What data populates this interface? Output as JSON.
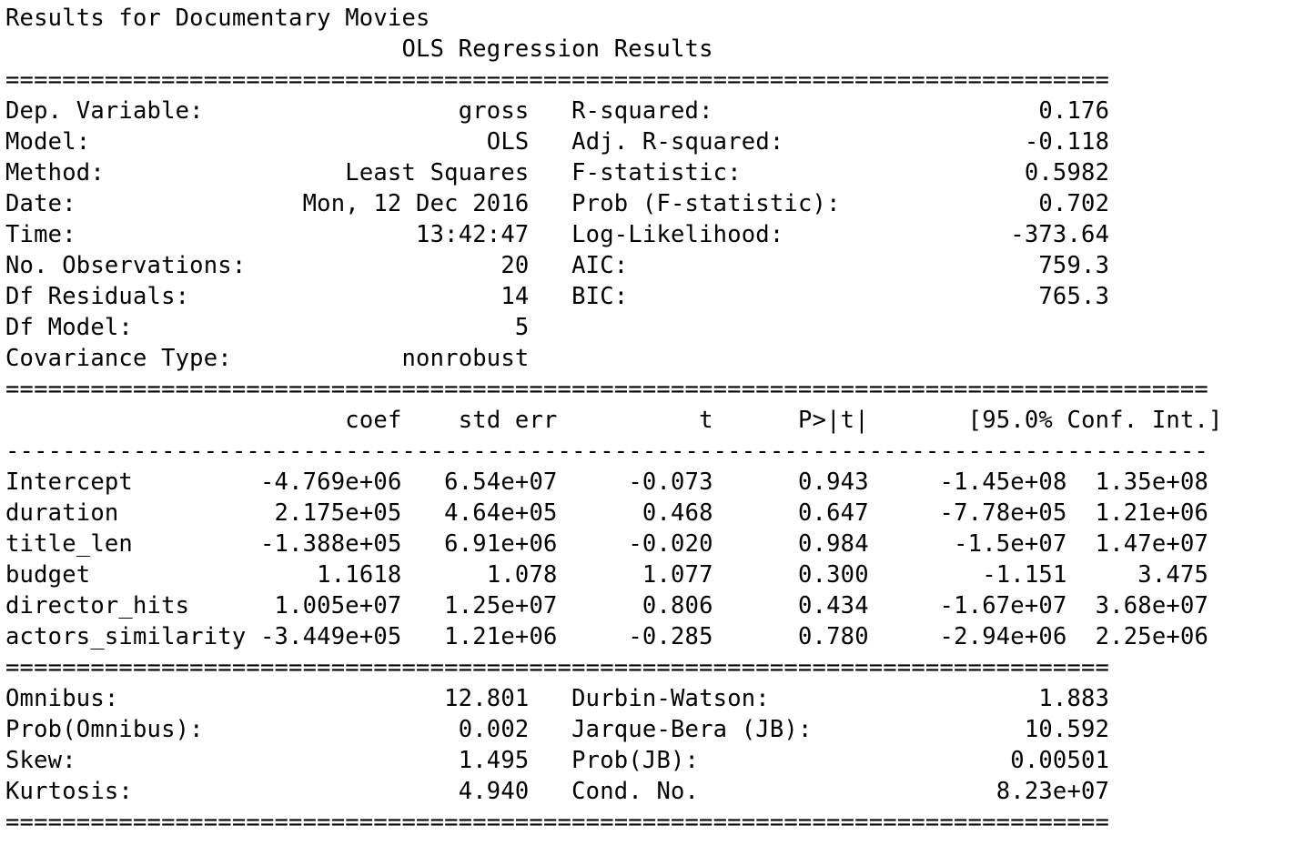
{
  "heading": "Results for Documentary Movies",
  "summary_title": "OLS Regression Results",
  "top_left": [
    {
      "label": "Dep. Variable:",
      "value": "gross"
    },
    {
      "label": "Model:",
      "value": "OLS"
    },
    {
      "label": "Method:",
      "value": "Least Squares"
    },
    {
      "label": "Date:",
      "value": "Mon, 12 Dec 2016"
    },
    {
      "label": "Time:",
      "value": "13:42:47"
    },
    {
      "label": "No. Observations:",
      "value": "20"
    },
    {
      "label": "Df Residuals:",
      "value": "14"
    },
    {
      "label": "Df Model:",
      "value": "5"
    },
    {
      "label": "Covariance Type:",
      "value": "nonrobust"
    }
  ],
  "top_right": [
    {
      "label": "R-squared:",
      "value": "0.176"
    },
    {
      "label": "Adj. R-squared:",
      "value": "-0.118"
    },
    {
      "label": "F-statistic:",
      "value": "0.5982"
    },
    {
      "label": "Prob (F-statistic):",
      "value": "0.702"
    },
    {
      "label": "Log-Likelihood:",
      "value": "-373.64"
    },
    {
      "label": "AIC:",
      "value": "759.3"
    },
    {
      "label": "BIC:",
      "value": "765.3"
    }
  ],
  "coef_headers": [
    "coef",
    "std err",
    "t",
    "P>|t|",
    "[95.0% Conf. Int.]"
  ],
  "coef_rows": [
    {
      "name": "Intercept",
      "coef": "-4.769e+06",
      "std_err": "6.54e+07",
      "t": "-0.073",
      "p": "0.943",
      "ci_low": "-1.45e+08",
      "ci_high": "1.35e+08"
    },
    {
      "name": "duration",
      "coef": "2.175e+05",
      "std_err": "4.64e+05",
      "t": "0.468",
      "p": "0.647",
      "ci_low": "-7.78e+05",
      "ci_high": "1.21e+06"
    },
    {
      "name": "title_len",
      "coef": "-1.388e+05",
      "std_err": "6.91e+06",
      "t": "-0.020",
      "p": "0.984",
      "ci_low": "-1.5e+07",
      "ci_high": "1.47e+07"
    },
    {
      "name": "budget",
      "coef": "1.1618",
      "std_err": "1.078",
      "t": "1.077",
      "p": "0.300",
      "ci_low": "-1.151",
      "ci_high": "3.475"
    },
    {
      "name": "director_hits",
      "coef": "1.005e+07",
      "std_err": "1.25e+07",
      "t": "0.806",
      "p": "0.434",
      "ci_low": "-1.67e+07",
      "ci_high": "3.68e+07"
    },
    {
      "name": "actors_similarity",
      "coef": "-3.449e+05",
      "std_err": "1.21e+06",
      "t": "-0.285",
      "p": "0.780",
      "ci_low": "-2.94e+06",
      "ci_high": "2.25e+06"
    }
  ],
  "bottom_left": [
    {
      "label": "Omnibus:",
      "value": "12.801"
    },
    {
      "label": "Prob(Omnibus):",
      "value": "0.002"
    },
    {
      "label": "Skew:",
      "value": "1.495"
    },
    {
      "label": "Kurtosis:",
      "value": "4.940"
    }
  ],
  "bottom_right": [
    {
      "label": "Durbin-Watson:",
      "value": "1.883"
    },
    {
      "label": "Jarque-Bera (JB):",
      "value": "10.592"
    },
    {
      "label": "Prob(JB):",
      "value": "0.00501"
    },
    {
      "label": "Cond. No.",
      "value": "8.23e+07"
    }
  ],
  "separators": {
    "double_char": "=",
    "single_char": "-"
  }
}
